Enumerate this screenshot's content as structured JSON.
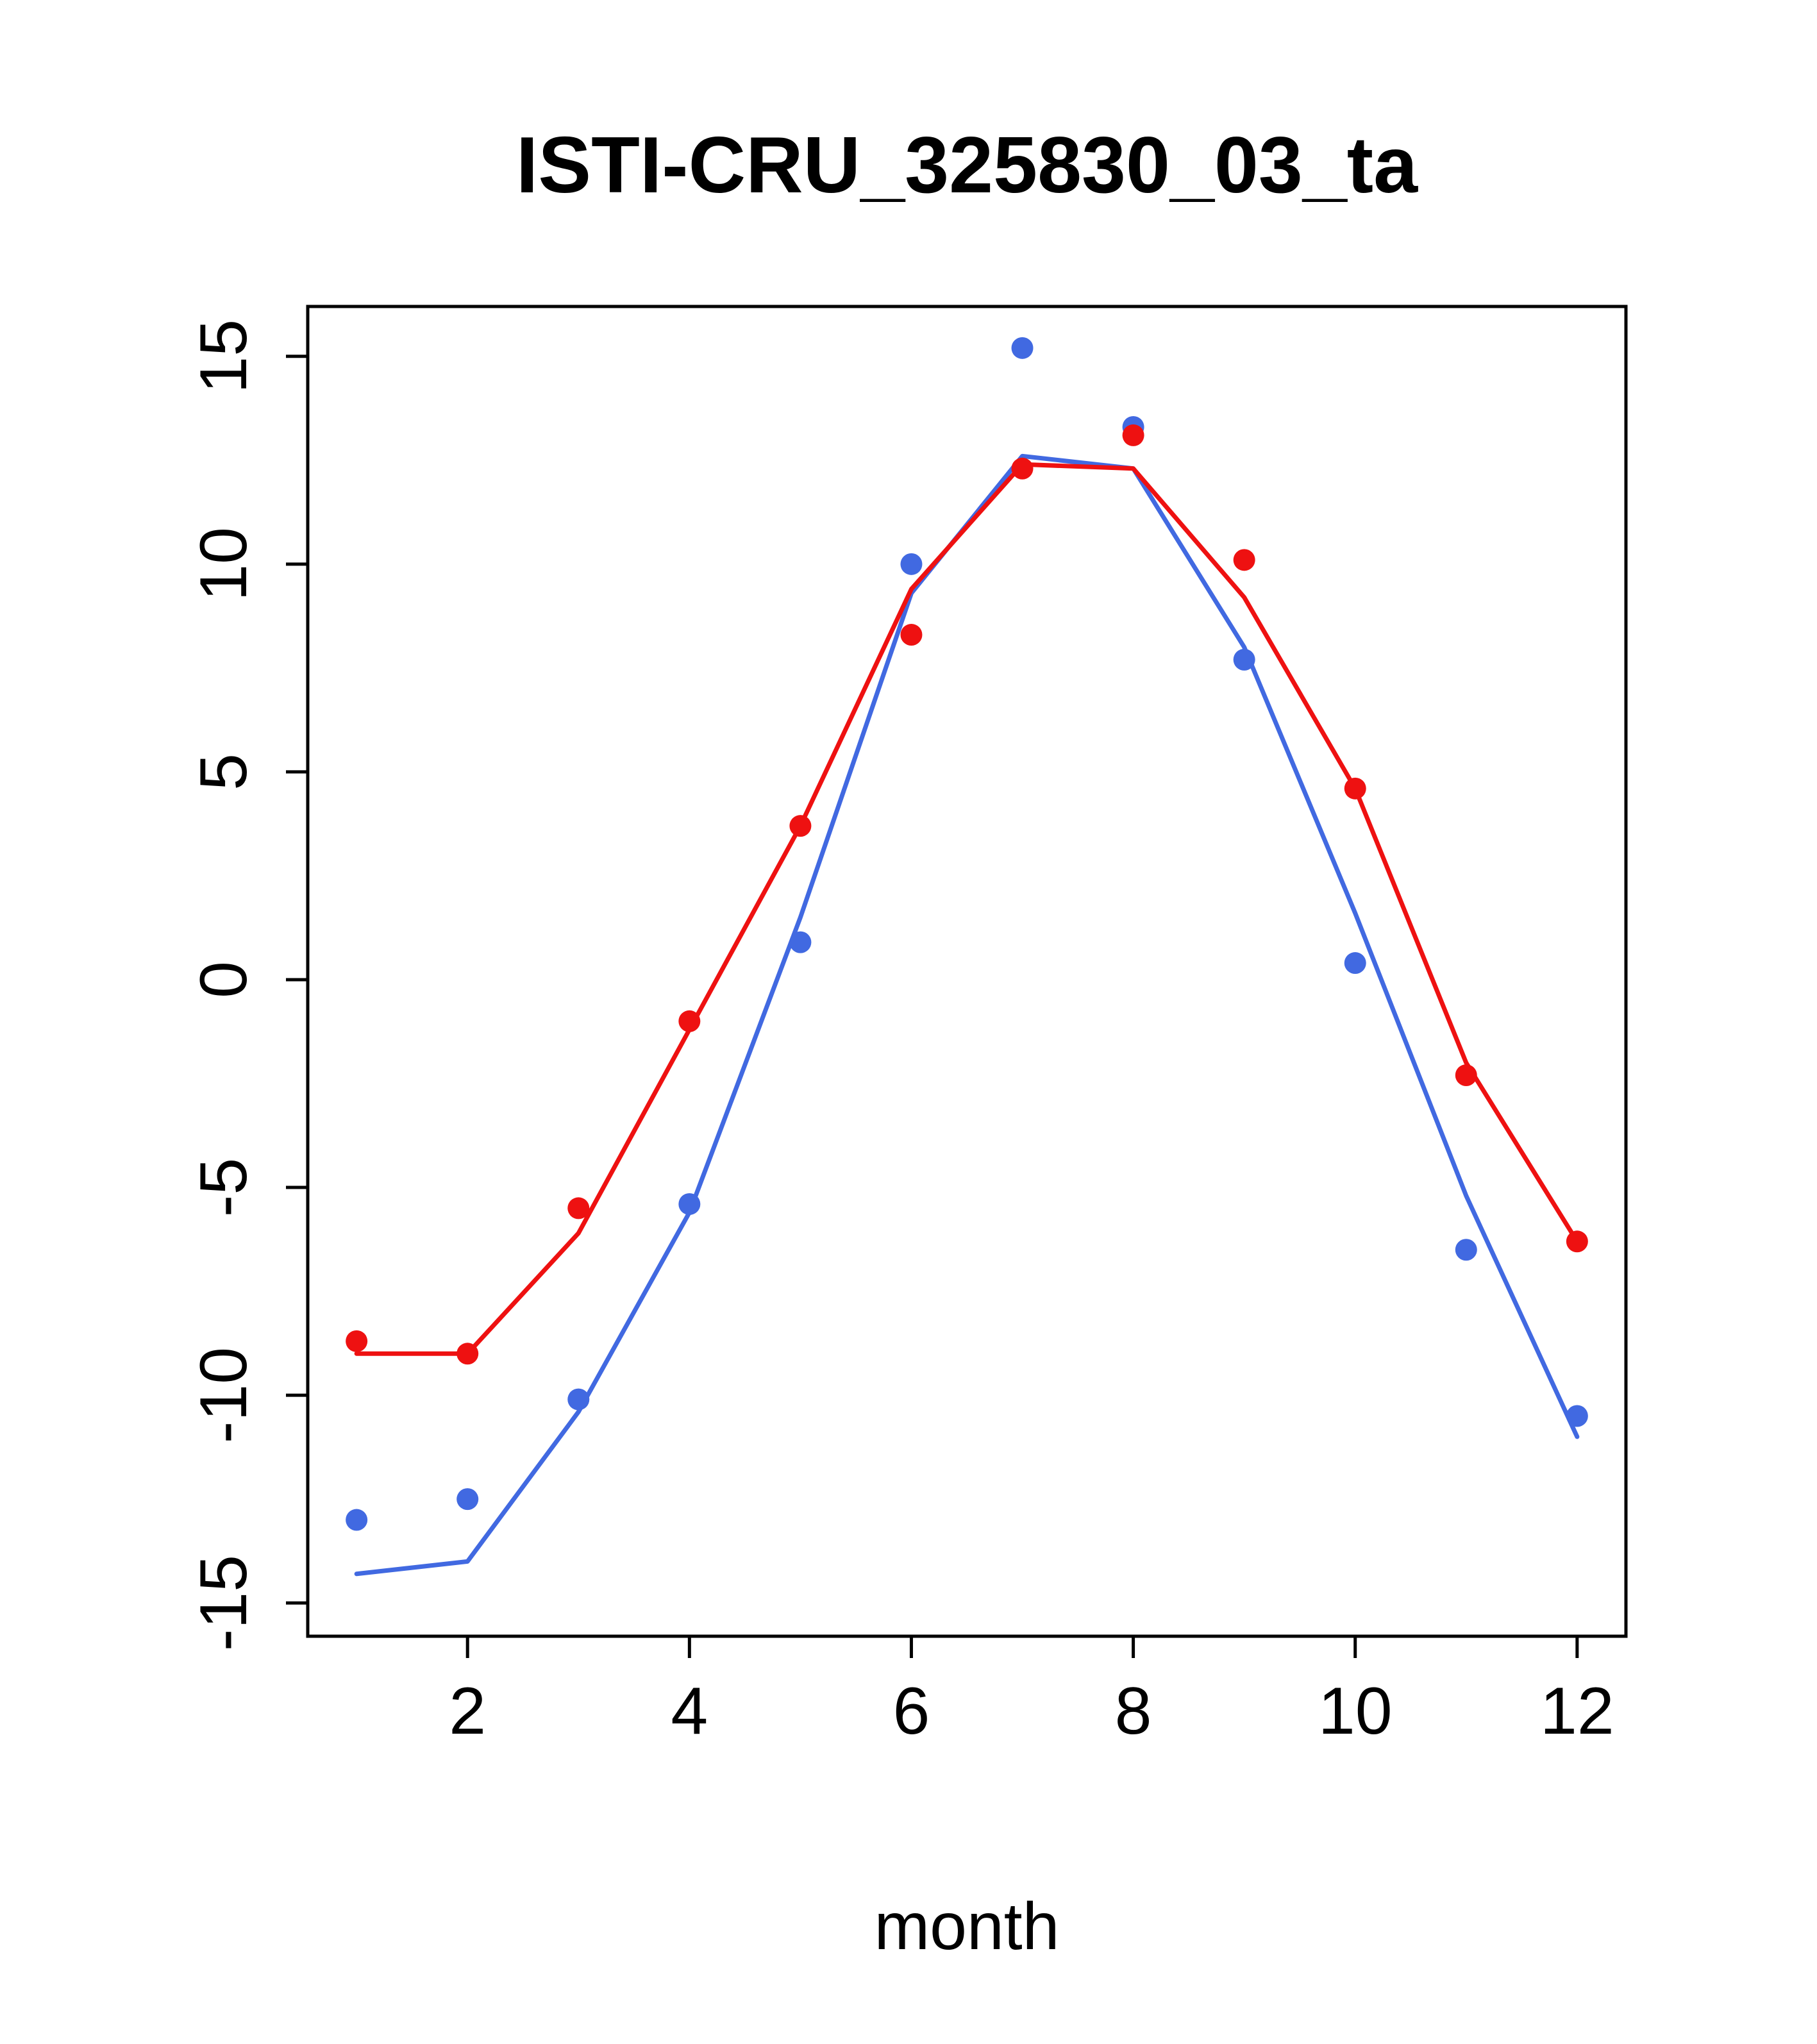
{
  "chart_data": {
    "type": "line",
    "title": "ISTI-CRU_325830_03_ta",
    "xlabel": "month",
    "ylabel": "",
    "x": [
      1,
      2,
      3,
      4,
      5,
      6,
      7,
      8,
      9,
      10,
      11,
      12
    ],
    "x_ticks": [
      2,
      4,
      6,
      8,
      10,
      12
    ],
    "y_ticks": [
      -15,
      -10,
      -5,
      0,
      5,
      10,
      15
    ],
    "xlim": [
      0.56,
      12.44
    ],
    "ylim": [
      -15.8,
      16.2
    ],
    "grid": false,
    "legend": "none",
    "colors": {
      "red": "#ee1111",
      "blue": "#4169e1"
    },
    "series": [
      {
        "name": "blue-series-line",
        "style": "line",
        "color": "#4169e1",
        "values": [
          -14.3,
          -14.0,
          -10.4,
          -5.6,
          1.5,
          9.3,
          12.6,
          12.3,
          8.0,
          1.6,
          -5.2,
          -11.0
        ]
      },
      {
        "name": "red-series-line",
        "style": "line",
        "color": "#ee1111",
        "values": [
          -9.0,
          -9.0,
          -6.1,
          -1.2,
          3.7,
          9.4,
          12.4,
          12.3,
          9.2,
          4.6,
          -2.0,
          -6.3
        ]
      },
      {
        "name": "blue-series-points",
        "style": "points",
        "color": "#4169e1",
        "values": [
          -13.0,
          -12.5,
          -10.1,
          -5.4,
          0.9,
          10.0,
          15.2,
          13.3,
          7.7,
          0.4,
          -6.5,
          -10.5
        ]
      },
      {
        "name": "red-series-points",
        "style": "points",
        "color": "#ee1111",
        "values": [
          -8.7,
          -9.0,
          -5.5,
          -1.0,
          3.7,
          8.3,
          12.3,
          13.1,
          10.1,
          4.6,
          -2.3,
          -6.3
        ]
      }
    ]
  }
}
